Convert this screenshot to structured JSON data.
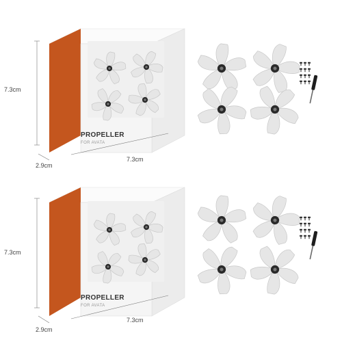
{
  "packages": [
    {
      "box": {
        "title": "PROPELLER",
        "subtitle": "FOR AVATA",
        "accent": "#c4561e"
      },
      "dimensions": {
        "height": "7.3cm",
        "width": "7.3cm",
        "depth": "2.9cm"
      },
      "contents": {
        "propeller_count": 4,
        "screw_count": 12,
        "includes_screwdriver": true
      }
    },
    {
      "box": {
        "title": "PROPELLER",
        "subtitle": "FOR AVATA",
        "accent": "#c4561e"
      },
      "dimensions": {
        "height": "7.3cm",
        "width": "7.3cm",
        "depth": "2.9cm"
      },
      "contents": {
        "propeller_count": 4,
        "screw_count": 12,
        "includes_screwdriver": true
      }
    }
  ],
  "colors": {
    "propeller": "#e6e6e6",
    "propeller_edge": "#c8c8c8",
    "hub": "#2a2a2a",
    "box_face": "#f5f5f5"
  }
}
